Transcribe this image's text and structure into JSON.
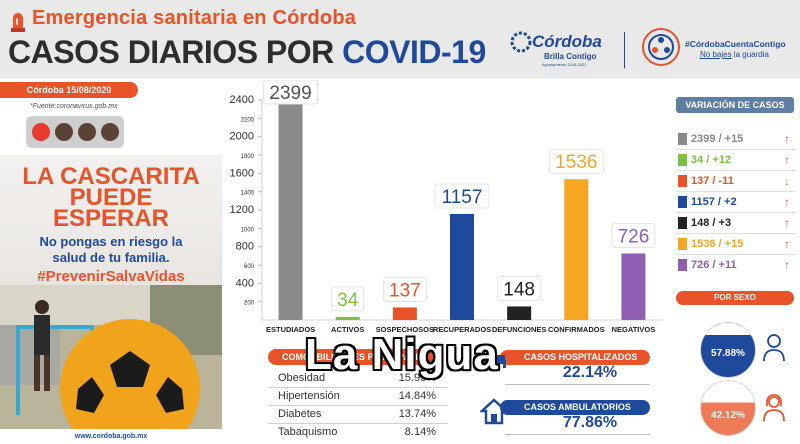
{
  "header": {
    "subtitle": "Emergencia sanitaria en Córdoba",
    "title_main": "CASOS DIARIOS POR ",
    "title_highlight": "COVID-19",
    "logo_brand": "Córdoba",
    "logo_tagline": "Brilla Contigo",
    "logo_small": "Ayuntamiento 2018-2021",
    "hashtag": "#CórdobaCuentaContigo",
    "slogan_prefix": "No bajes",
    "slogan_suffix": " la guardia"
  },
  "poster": {
    "date": "Córdoba 15/08/2020",
    "source": "*Fuente:coronavirus.gob.mx",
    "line1": "LA CASCARITA",
    "line2": "PUEDE",
    "line3": "ESPERAR",
    "line4": "No pongas en riesgo la",
    "line5": "salud de tu familia.",
    "hashtag": "#PrevenirSalvaVidas",
    "url": "www.cordoba.gob.mx",
    "light_colors": [
      "#e63b2e",
      "#5a4237",
      "#5a4237",
      "#5a4237"
    ]
  },
  "chart_data": {
    "type": "bar",
    "categories": [
      "ESTUDIADOS",
      "ACTIVOS",
      "SOSPECHOSOS",
      "RECUPERADOS",
      "DEFUNCIONES",
      "CONFIRMADOS",
      "NEGATIVOS"
    ],
    "values": [
      2399,
      34,
      137,
      1157,
      148,
      1536,
      726
    ],
    "data_labels": [
      "2399",
      "34",
      "137",
      "1157",
      "148",
      "1536",
      "726"
    ],
    "colors": [
      "#8a8a8a",
      "#7cc242",
      "#e8532a",
      "#1f4a9b",
      "#222222",
      "#f5a623",
      "#8e5fb3"
    ],
    "label_colors": [
      "#555555",
      "#7cc242",
      "#e8532a",
      "#1f4a9b",
      "#222222",
      "#f5a623",
      "#8e5fb3"
    ],
    "yticks": [
      200,
      400,
      600,
      800,
      1000,
      1200,
      1400,
      1600,
      1800,
      2000,
      2200,
      2400
    ],
    "ylim": [
      0,
      2400
    ],
    "title": "",
    "xlabel": "",
    "ylabel": ""
  },
  "comorbidities": {
    "title": "COMORBILIDADES PRINCIPALES",
    "items": [
      {
        "label": "Obesidad",
        "value": "15.95%"
      },
      {
        "label": "Hipertensión",
        "value": "14.84%"
      },
      {
        "label": "Diabetes",
        "value": "13.74%"
      },
      {
        "label": "Tabaquismo",
        "value": "8.14%"
      }
    ]
  },
  "hospitalized": {
    "title": "CASOS HOSPITALIZADOS",
    "value": "22.14%"
  },
  "ambulatory": {
    "title": "CASOS AMBULATORIOS",
    "value": "77.86%"
  },
  "variation": {
    "title": "VARIACIÓN DE CASOS",
    "rows": [
      {
        "text": "2399 / +15",
        "color": "#8a8a8a",
        "arrow": "↑",
        "arrow_color": "#e8532a"
      },
      {
        "text": "34 /   +12",
        "color": "#7cc242",
        "arrow": "↑",
        "arrow_color": "#e8532a"
      },
      {
        "text": "137 /  -11",
        "color": "#e8532a",
        "arrow": "↓",
        "arrow_color": "#7cc242"
      },
      {
        "text": "1157 / +2",
        "color": "#1f4a9b",
        "arrow": "↑",
        "arrow_color": "#e8532a"
      },
      {
        "text": "148 /  +3",
        "color": "#222222",
        "arrow": "↑",
        "arrow_color": "#e8532a"
      },
      {
        "text": "1536 / +15",
        "color": "#f5a623",
        "arrow": "↑",
        "arrow_color": "#e8532a"
      },
      {
        "text": "726  / +11",
        "color": "#8e5fb3",
        "arrow": "↑",
        "arrow_color": "#e8532a"
      }
    ]
  },
  "by_sex": {
    "title": "POR SEXO",
    "male": "57.88%",
    "female": "42.12%"
  },
  "watermark": "La Nigua"
}
